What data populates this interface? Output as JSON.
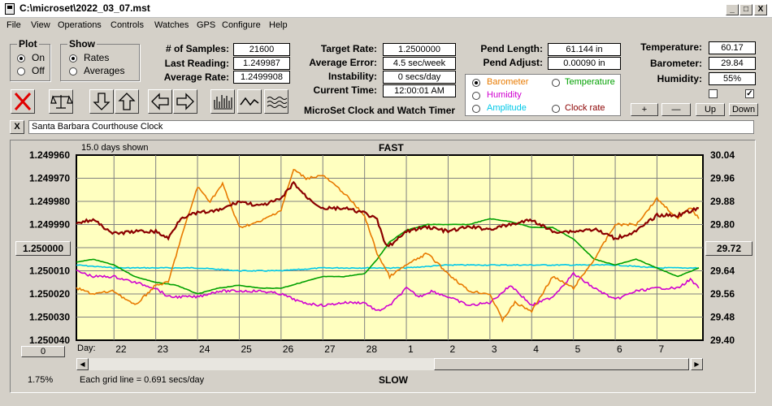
{
  "window": {
    "title": "C:\\microset\\2022_03_07.mst",
    "min": "_",
    "max": "□",
    "close": "X"
  },
  "menu": [
    "File",
    "View",
    "Operations",
    "Controls",
    "Watches",
    "GPS",
    "Configure",
    "Help"
  ],
  "plot_group": {
    "title": "Plot",
    "options": [
      "On",
      "Off"
    ],
    "selected": "On"
  },
  "show_group": {
    "title": "Show",
    "options": [
      "Rates",
      "Averages"
    ],
    "selected": "Rates"
  },
  "stats1": {
    "samples_label": "# of Samples:",
    "samples": "21600",
    "last_label": "Last Reading:",
    "last": "1.249987",
    "avg_label": "Average Rate:",
    "avg": "1.2499908"
  },
  "stats2": {
    "target_label": "Target Rate:",
    "target": "1.2500000",
    "err_label": "Average Error:",
    "err": "4.5 sec/week",
    "inst_label": "Instability:",
    "inst": "0 secs/day",
    "time_label": "Current Time:",
    "time": "12:00:01 AM"
  },
  "app_name": "MicroSet Clock and Watch Timer",
  "pend": {
    "len_label": "Pend Length:",
    "len": "61.144 in",
    "adj_label": "Pend Adjust:",
    "adj": "0.00090 in"
  },
  "env": {
    "temp_label": "Temperature:",
    "temp": "60.17",
    "baro_label": "Barometer:",
    "baro": "29.84",
    "hum_label": "Humidity:",
    "hum": "55%"
  },
  "secondary": {
    "options": [
      {
        "label": "Barometer",
        "color": "#e87a00",
        "selected": true
      },
      {
        "label": "Temperature",
        "color": "#00a000",
        "selected": false
      },
      {
        "label": "Humidity",
        "color": "#d000d0",
        "selected": false
      },
      {
        "label": "Amplitude",
        "color": "#00c8e8",
        "selected": false
      },
      {
        "label": "Clock rate",
        "color": "#8b0000",
        "selected": false
      }
    ]
  },
  "scale_buttons": {
    "plus": "+",
    "minus": "—",
    "up": "Up",
    "down": "Down"
  },
  "toolbar_icons": [
    "clear-icon",
    "balance-scale-icon",
    "arrow-down-icon",
    "arrow-up-icon",
    "arrow-left-icon",
    "arrow-right-icon",
    "bar-chart-icon",
    "waveform-icon",
    "wavy-lines-icon"
  ],
  "description": {
    "close": "X",
    "text": "Santa Barbara Courthouse Clock"
  },
  "plot": {
    "days_shown": "15.0 days shown",
    "top_label": "FAST",
    "bottom_label": "SLOW",
    "center_button": "1.250000",
    "right_center_button": "29.72",
    "zero_button": "0",
    "percent": "1.75%",
    "grid_note": "Each grid line = 0.691 secs/day",
    "day_label": "Day:"
  },
  "chart_data": {
    "type": "line",
    "left_axis": {
      "ticks": [
        "1.249960",
        "1.249970",
        "1.249980",
        "1.249990",
        "1.250000",
        "1.250010",
        "1.250020",
        "1.250030",
        "1.250040"
      ],
      "min": 1.24996,
      "max": 1.25004,
      "inverted": true
    },
    "right_axis": {
      "ticks": [
        "30.04",
        "29.96",
        "29.88",
        "29.80",
        "29.72",
        "29.64",
        "29.56",
        "29.48",
        "29.40"
      ],
      "min": 29.4,
      "max": 30.04
    },
    "x_ticks": [
      "22",
      "23",
      "24",
      "25",
      "26",
      "27",
      "28",
      "1",
      "2",
      "3",
      "4",
      "5",
      "6",
      "7"
    ],
    "x_range_days": [
      21.1,
      36.1
    ],
    "series": [
      {
        "key": "clockrate",
        "color": "#8b0000",
        "axis": "left",
        "x": [
          21.1,
          21.5,
          22,
          22.5,
          23,
          23.3,
          23.6,
          24,
          24.5,
          25,
          25.5,
          26,
          26.3,
          26.6,
          27,
          27.5,
          28,
          28.3,
          28.5,
          28.7,
          29,
          29.5,
          30,
          30.5,
          31,
          31.5,
          32,
          32.5,
          33,
          33.5,
          34,
          34.5,
          35,
          35.5,
          36
        ],
        "y": [
          1.249989,
          1.249988,
          1.249994,
          1.249993,
          1.249993,
          1.249996,
          1.249987,
          1.249985,
          1.249984,
          1.24998,
          1.249982,
          1.249979,
          1.249972,
          1.249978,
          1.249983,
          1.249983,
          1.249985,
          1.249988,
          1.249999,
          1.249998,
          1.249993,
          1.249991,
          1.249993,
          1.249991,
          1.249992,
          1.24999,
          1.249988,
          1.249993,
          1.249993,
          1.249992,
          1.249996,
          1.249993,
          1.249986,
          1.249986,
          1.249983
        ]
      },
      {
        "key": "barometer",
        "color": "#e87a00",
        "axis": "right",
        "x": [
          21.1,
          21.5,
          22,
          22.5,
          23,
          23.3,
          23.6,
          24,
          24.3,
          24.6,
          25,
          25.5,
          26,
          26.3,
          26.6,
          27,
          27.5,
          28,
          28.3,
          28.6,
          29,
          29.5,
          30,
          30.5,
          31,
          31.3,
          31.6,
          32,
          32.5,
          33,
          33.5,
          34,
          34.5,
          35,
          35.5,
          35.8,
          36
        ],
        "y": [
          29.58,
          29.56,
          29.57,
          29.52,
          29.59,
          29.6,
          29.75,
          29.93,
          29.88,
          29.94,
          29.79,
          29.81,
          29.85,
          29.99,
          29.96,
          29.97,
          29.91,
          29.83,
          29.7,
          29.62,
          29.66,
          29.7,
          29.63,
          29.57,
          29.56,
          29.47,
          29.53,
          29.5,
          29.62,
          29.58,
          29.68,
          29.8,
          29.8,
          29.89,
          29.82,
          29.86,
          29.82
        ]
      },
      {
        "key": "temperature",
        "color": "#00a000",
        "axis": "right",
        "x": [
          21.1,
          21.5,
          22,
          22.5,
          23,
          23.5,
          24,
          24.5,
          25,
          25.5,
          26,
          26.5,
          27,
          27.5,
          28,
          28.3,
          28.6,
          29,
          29.5,
          30,
          30.5,
          31,
          31.5,
          32,
          32.5,
          33,
          33.5,
          34,
          34.5,
          35,
          35.5,
          36
        ],
        "y": [
          29.67,
          29.68,
          29.66,
          29.62,
          29.6,
          29.59,
          29.56,
          29.58,
          29.59,
          29.58,
          29.58,
          29.6,
          29.62,
          29.62,
          29.63,
          29.68,
          29.74,
          29.78,
          29.8,
          29.8,
          29.8,
          29.82,
          29.81,
          29.79,
          29.79,
          29.75,
          29.68,
          29.66,
          29.68,
          29.65,
          29.62,
          29.65
        ]
      },
      {
        "key": "amplitude",
        "color": "#00c8e8",
        "axis": "right",
        "x": [
          21.1,
          22,
          23,
          24,
          25,
          26,
          27,
          28,
          29,
          30,
          31,
          32,
          33,
          34,
          35,
          36
        ],
        "y": [
          29.66,
          29.65,
          29.65,
          29.65,
          29.64,
          29.64,
          29.65,
          29.65,
          29.65,
          29.66,
          29.66,
          29.66,
          29.66,
          29.66,
          29.65,
          29.65
        ]
      },
      {
        "key": "humidity",
        "color": "#d000d0",
        "axis": "right",
        "x": [
          21.1,
          21.5,
          22,
          22.5,
          23,
          23.3,
          23.6,
          24,
          24.5,
          25,
          25.5,
          26,
          26.5,
          27,
          27.5,
          28,
          28.3,
          28.6,
          29,
          29.3,
          29.6,
          30,
          30.5,
          31,
          31.5,
          32,
          32.5,
          33,
          33.5,
          34,
          34.5,
          35,
          35.5,
          35.8,
          36
        ],
        "y": [
          29.64,
          29.62,
          29.62,
          29.6,
          29.58,
          29.55,
          29.55,
          29.55,
          29.57,
          29.57,
          29.57,
          29.56,
          29.53,
          29.52,
          29.53,
          29.53,
          29.5,
          29.52,
          29.58,
          29.55,
          29.57,
          29.55,
          29.52,
          29.53,
          29.59,
          29.52,
          29.55,
          29.63,
          29.58,
          29.54,
          29.57,
          29.58,
          29.58,
          29.61,
          29.58
        ]
      }
    ]
  }
}
